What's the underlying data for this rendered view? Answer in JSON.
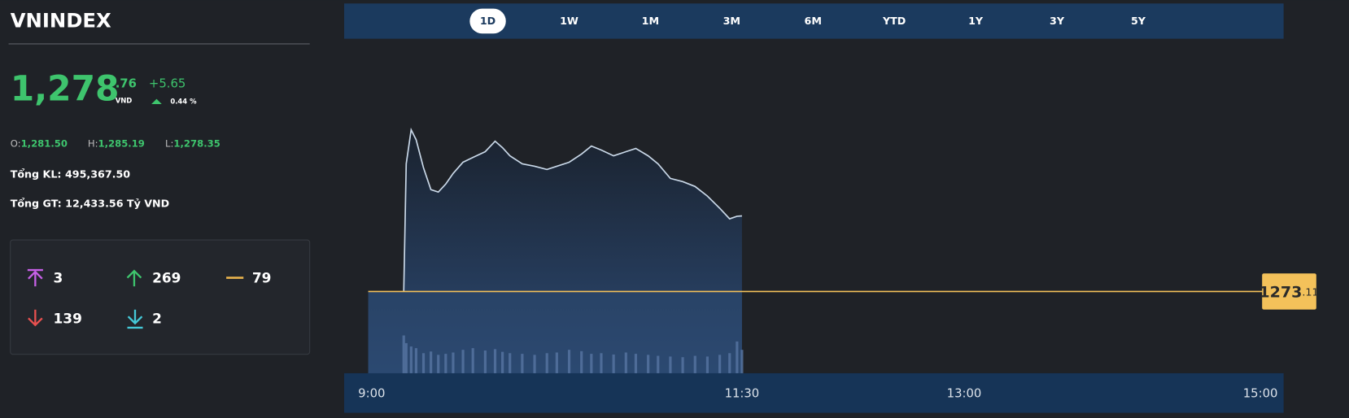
{
  "header": {
    "title": "VNINDEX"
  },
  "quote": {
    "price": "1,278",
    "decimal": ".76",
    "currency": "VND",
    "change": "+5.65",
    "change_pct": "0.44 %"
  },
  "ohl": [
    {
      "label": "O:",
      "value": "1,281.50"
    },
    {
      "label": "H:",
      "value": "1,285.19"
    },
    {
      "label": "L:",
      "value": "1,278.35"
    }
  ],
  "stats": [
    {
      "label": "Tổng KL:",
      "value": "495,367.50"
    },
    {
      "label": "Tổng GT:",
      "value": "12,433.56 Tỷ VND"
    }
  ],
  "breadth": {
    "ceiling": "3",
    "up": "269",
    "unchanged": "79",
    "down": "139",
    "floor": "2"
  },
  "periods": [
    "1D",
    "1W",
    "1M",
    "3M",
    "6M",
    "YTD",
    "1Y",
    "3Y",
    "5Y"
  ],
  "active_period": 0,
  "chart_data": {
    "type": "line",
    "x": [
      13,
      14,
      16,
      18,
      21,
      24,
      27,
      30,
      33,
      37,
      41,
      46,
      50,
      53,
      56,
      61,
      66,
      71,
      75,
      80,
      85,
      89,
      93,
      98,
      103,
      107,
      112,
      116,
      121,
      126,
      131,
      136,
      141,
      145,
      148,
      150
    ],
    "values": [
      1273.11,
      1282.65,
      1285.19,
      1284.46,
      1282.35,
      1280.72,
      1280.54,
      1281.14,
      1281.93,
      1282.77,
      1283.13,
      1283.56,
      1284.34,
      1283.86,
      1283.25,
      1282.65,
      1282.47,
      1282.23,
      1282.47,
      1282.77,
      1283.38,
      1283.98,
      1283.68,
      1283.25,
      1283.56,
      1283.8,
      1283.25,
      1282.65,
      1281.56,
      1281.32,
      1280.96,
      1280.24,
      1279.33,
      1278.54,
      1278.73,
      1278.76
    ],
    "volume": [
      113,
      90,
      80,
      75,
      60,
      65,
      55,
      58,
      62,
      70,
      75,
      68,
      72,
      64,
      60,
      58,
      55,
      60,
      62,
      70,
      66,
      58,
      60,
      56,
      62,
      58,
      55,
      52,
      50,
      48,
      52,
      50,
      55,
      60,
      95,
      70
    ],
    "volume_lim": [
      0,
      1000
    ],
    "color": "#c9d8e8",
    "xlim": [
      0,
      360
    ],
    "xticks": [
      {
        "value": 0,
        "label": "9:00"
      },
      {
        "value": 150,
        "label": "11:30"
      },
      {
        "value": 240,
        "label": "13:00"
      },
      {
        "value": 360,
        "label": "15:00"
      }
    ],
    "ylim": [
      1267,
      1292
    ],
    "reference": {
      "value": 1273.11,
      "label": "1273",
      "decimals": ".11",
      "color": "#f3c15a"
    }
  }
}
